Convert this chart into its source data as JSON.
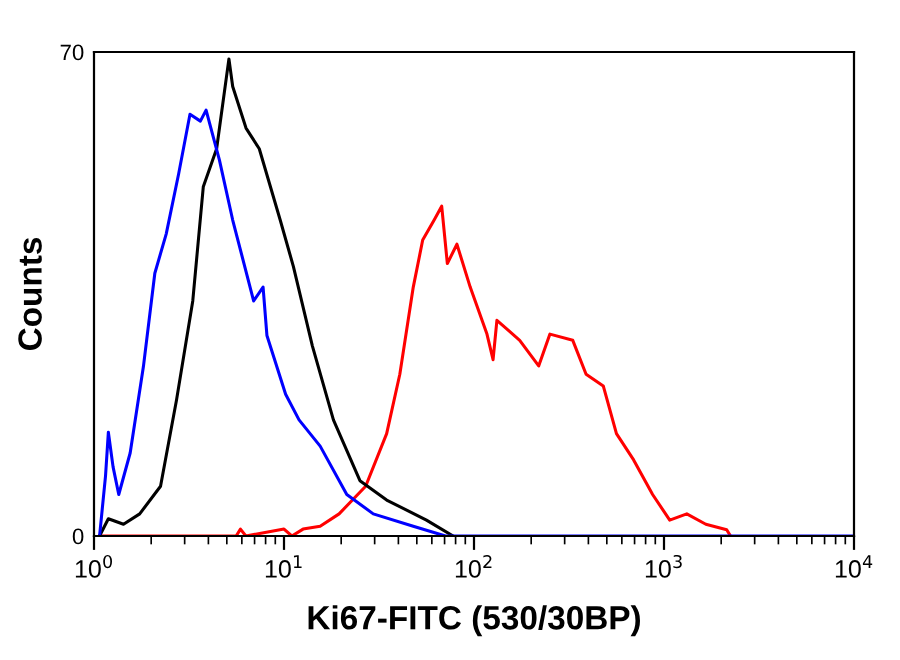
{
  "chart_data": {
    "type": "line",
    "xlabel": "Ki67-FITC (530/30BP)",
    "ylabel": "Counts",
    "log": "x",
    "xlim": [
      1,
      10000
    ],
    "xticks": [
      {
        "value": 1,
        "label": "10$^{0}$"
      },
      {
        "value": 10,
        "label": "10$^{1}$"
      },
      {
        "value": 100,
        "label": "10$^{2}$"
      },
      {
        "value": 1000,
        "label": "10$^{3}$"
      },
      {
        "value": 10000,
        "label": "10$^{4}$"
      }
    ],
    "ylim": [
      0,
      70
    ],
    "yticks": [
      0,
      70
    ],
    "grid": false,
    "marker": "none",
    "line_style": "solid",
    "series": [
      {
        "color": "#ff0000",
        "x": [
          1.07,
          5.6,
          5.9,
          6.3,
          10,
          11,
          12.6,
          15.5,
          19.5,
          26.9,
          34.7,
          40.7,
          47.9,
          53.7,
          61.7,
          67.6,
          72.4,
          81.3,
          95.5,
          117,
          126,
          132,
          174,
          219,
          251,
          331,
          389,
          479,
          562,
          692,
          871,
          1072,
          1318,
          1660,
          2138,
          2239
        ],
        "values": [
          0,
          0,
          1,
          0,
          1,
          0,
          1,
          1.4,
          3.2,
          7.2,
          14.8,
          23.4,
          36,
          42.8,
          45.7,
          47.7,
          39.4,
          42.2,
          36,
          29.2,
          25.5,
          31.2,
          28.3,
          24.6,
          29.2,
          28.3,
          23.4,
          21.7,
          14.8,
          11,
          6,
          2.3,
          3.2,
          1.7,
          0.9,
          0
        ]
      },
      {
        "color": "#000000",
        "x": [
          1.07,
          1.19,
          1.43,
          1.74,
          2.24,
          2.72,
          3.31,
          3.76,
          4.42,
          5.13,
          5.37,
          6.31,
          7.41,
          9.55,
          11.2,
          14.1,
          18.2,
          25.1,
          34.7,
          56.2,
          77.6
        ],
        "values": [
          0,
          2.5,
          1.7,
          3.2,
          7.2,
          19.7,
          34,
          50.5,
          56,
          69,
          65,
          59,
          56,
          45.7,
          39,
          27.5,
          16.8,
          8,
          5.2,
          2.3,
          0
        ]
      },
      {
        "color": "#0000ff",
        "x": [
          1.07,
          1.15,
          1.19,
          1.26,
          1.35,
          1.55,
          1.82,
          2.09,
          2.4,
          2.79,
          3.2,
          3.63,
          3.89,
          4.57,
          5.37,
          6.92,
          7.76,
          8.13,
          10.2,
          12,
          15.5,
          21.4,
          29.5,
          47.9,
          70.8,
          10000
        ],
        "values": [
          0,
          8.7,
          15,
          10,
          6,
          12,
          24.5,
          38,
          43.7,
          52.4,
          61,
          60,
          61.6,
          54.4,
          45.7,
          34,
          36,
          29,
          20.5,
          16.8,
          13,
          6,
          3.2,
          1.4,
          0,
          0
        ]
      }
    ]
  }
}
